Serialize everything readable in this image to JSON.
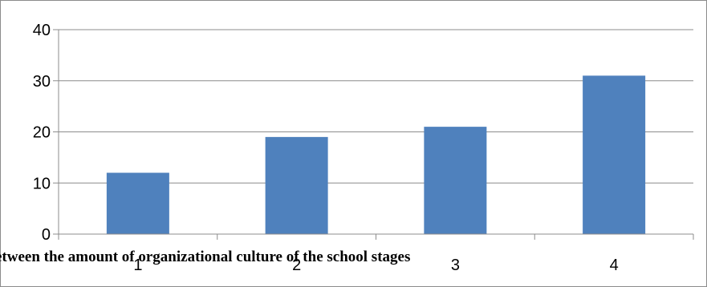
{
  "chart_data": {
    "type": "bar",
    "title": "",
    "xlabel": "",
    "ylabel": "",
    "categories": [
      "1",
      "2",
      "3",
      "4"
    ],
    "values": [
      12,
      19,
      21,
      31
    ],
    "ylim": [
      0,
      40
    ],
    "yticks": [
      "0",
      "10",
      "20",
      "30",
      "40"
    ],
    "grid": true,
    "legend": "none",
    "bar_color": "#4f81bd",
    "grid_color": "#8c8c8c"
  },
  "caption": "etween the amount of organizational culture of the school stages"
}
